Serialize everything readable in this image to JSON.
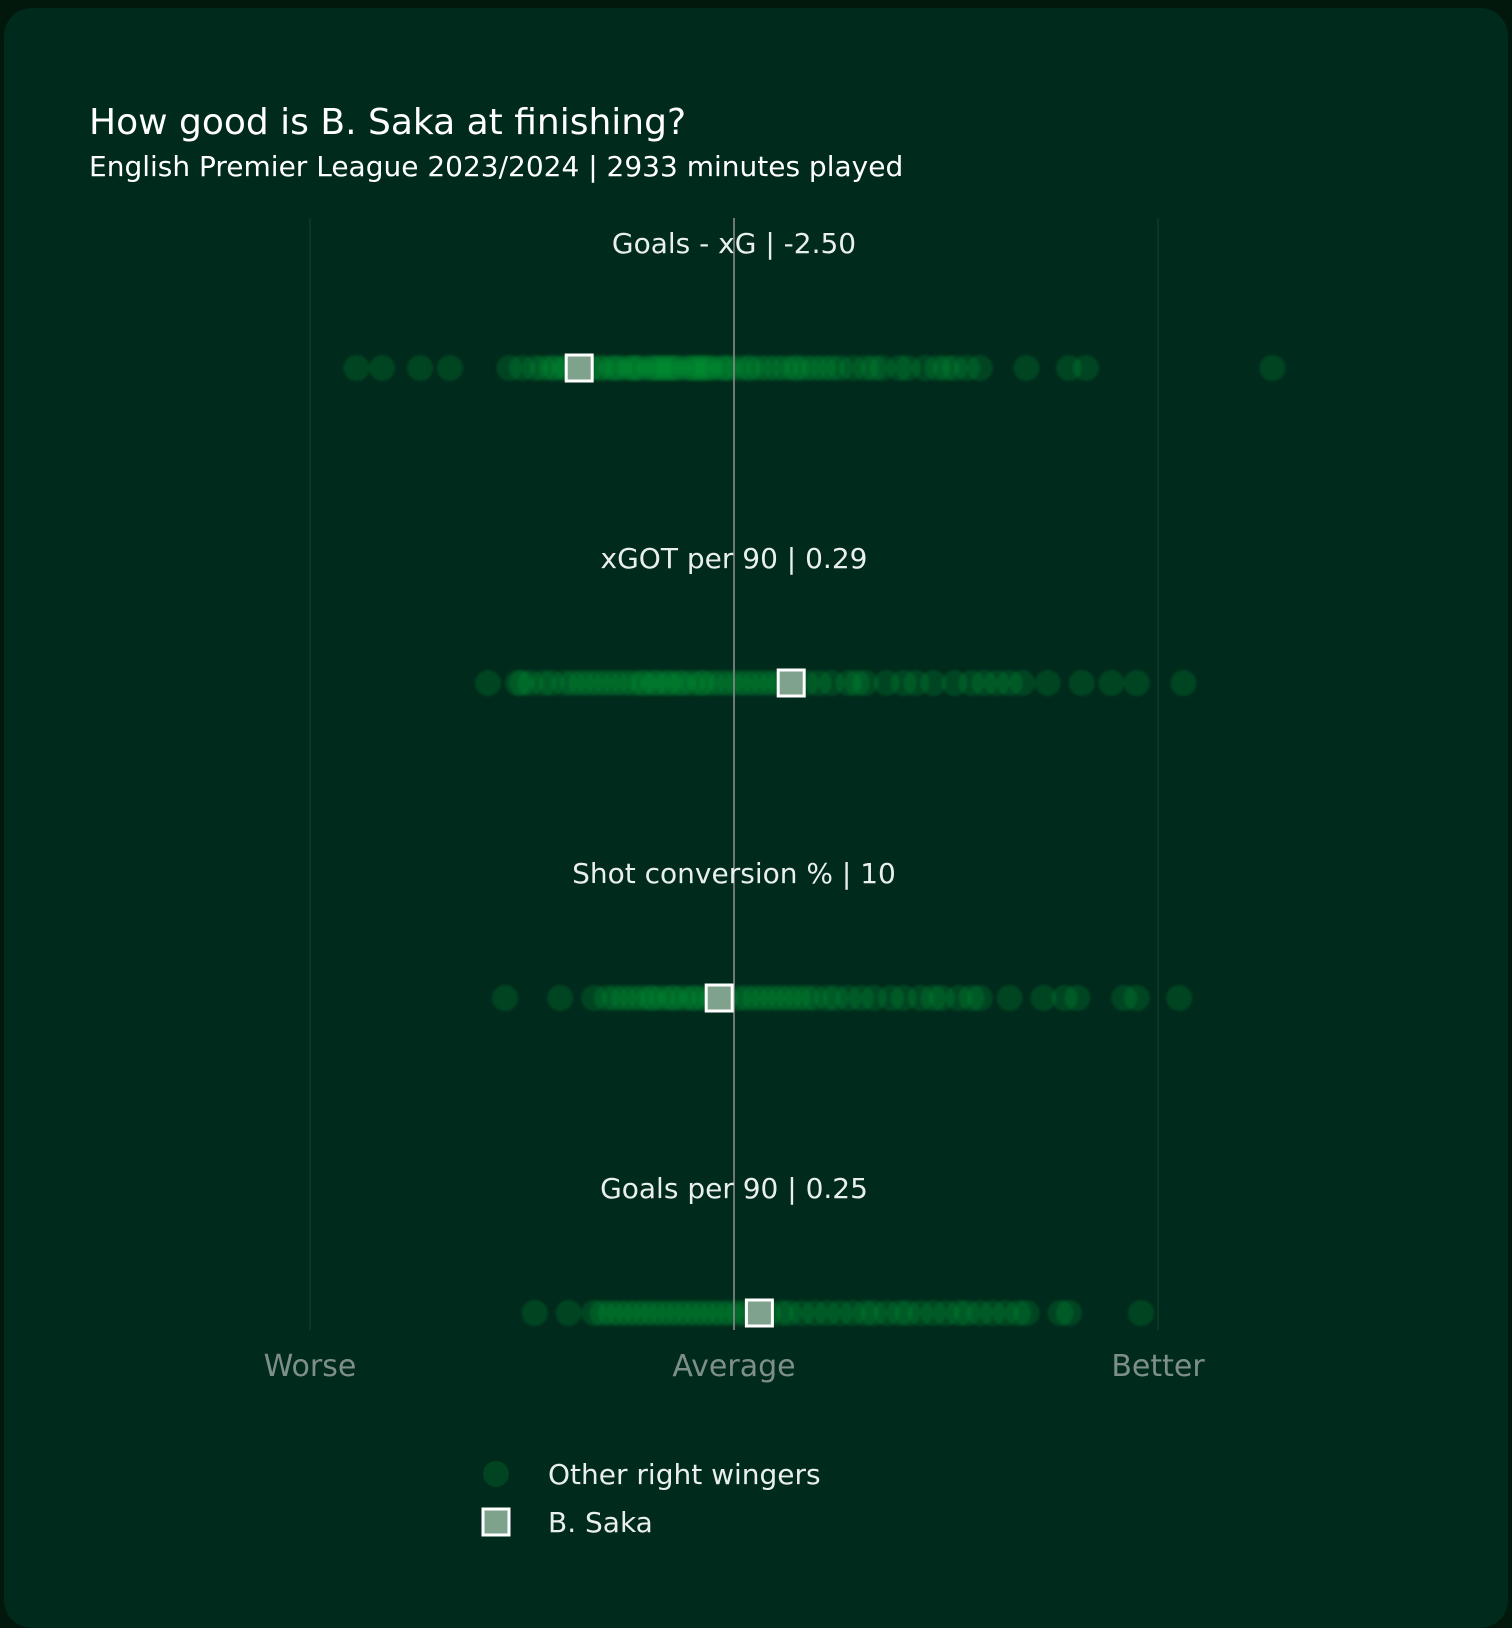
{
  "header": {
    "title": "How good is B. Saka at finishing?",
    "subtitle": "English Premier League 2023/2024 | 2933 minutes played"
  },
  "colors": {
    "background": "#002a1c",
    "others": "#05a43a",
    "saka_fill": "#7fa28d",
    "saka_stroke": "#ffffff",
    "average_line": "#8b8b8b"
  },
  "chart_data": {
    "type": "scatter",
    "scale": "standardized, -1 = Worse, 0 = Average, 1 = Better",
    "xlim": [
      -1,
      1
    ],
    "axis_labels": {
      "worse": "Worse",
      "average": "Average",
      "better": "Better"
    },
    "legend": {
      "others": "Other right wingers",
      "highlight": "B. Saka"
    },
    "metrics": [
      {
        "label": "Goals - xG | -2.50",
        "saka": -0.365,
        "others": [
          -0.89,
          -0.83,
          -0.74,
          -0.67,
          -0.53,
          -0.5,
          -0.47,
          -0.45,
          -0.43,
          -0.42,
          -0.4,
          -0.39,
          -0.37,
          -0.34,
          -0.32,
          -0.31,
          -0.29,
          -0.28,
          -0.27,
          -0.25,
          -0.24,
          -0.23,
          -0.22,
          -0.2,
          -0.19,
          -0.18,
          -0.17,
          -0.16,
          -0.15,
          -0.14,
          -0.13,
          -0.11,
          -0.1,
          -0.09,
          -0.08,
          -0.07,
          -0.06,
          -0.05,
          -0.03,
          -0.02,
          -0.01,
          0.01,
          0.03,
          0.04,
          0.06,
          0.08,
          0.1,
          0.12,
          0.14,
          0.15,
          0.17,
          0.19,
          0.21,
          0.23,
          0.25,
          0.28,
          0.31,
          0.33,
          0.35,
          0.39,
          0.41,
          0.45,
          0.48,
          0.5,
          0.52,
          0.55,
          0.58,
          0.69,
          0.79,
          0.83,
          1.27
        ]
      },
      {
        "label": "xGOT per 90 | 0.29",
        "saka": 0.135,
        "others": [
          -0.58,
          -0.51,
          -0.5,
          -0.48,
          -0.45,
          -0.43,
          -0.4,
          -0.38,
          -0.36,
          -0.34,
          -0.32,
          -0.3,
          -0.28,
          -0.26,
          -0.24,
          -0.22,
          -0.21,
          -0.19,
          -0.18,
          -0.16,
          -0.15,
          -0.13,
          -0.12,
          -0.1,
          -0.08,
          -0.07,
          -0.05,
          -0.03,
          -0.01,
          0.01,
          0.03,
          0.05,
          0.07,
          0.09,
          0.11,
          0.17,
          0.2,
          0.23,
          0.27,
          0.29,
          0.31,
          0.36,
          0.4,
          0.43,
          0.47,
          0.52,
          0.56,
          0.59,
          0.62,
          0.65,
          0.68,
          0.74,
          0.82,
          0.89,
          0.95,
          1.06
        ]
      },
      {
        "label": "Shot conversion % | 10",
        "saka": -0.035,
        "others": [
          -0.54,
          -0.41,
          -0.33,
          -0.3,
          -0.28,
          -0.26,
          -0.24,
          -0.22,
          -0.2,
          -0.19,
          -0.17,
          -0.15,
          -0.14,
          -0.12,
          -0.1,
          -0.09,
          -0.07,
          -0.05,
          -0.04,
          -0.02,
          0.01,
          0.03,
          0.05,
          0.07,
          0.09,
          0.11,
          0.13,
          0.15,
          0.17,
          0.19,
          0.22,
          0.24,
          0.27,
          0.3,
          0.33,
          0.37,
          0.4,
          0.44,
          0.47,
          0.49,
          0.53,
          0.56,
          0.58,
          0.65,
          0.73,
          0.78,
          0.81,
          0.92,
          0.95,
          1.05
        ]
      },
      {
        "label": "Goals per 90 | 0.25",
        "saka": 0.06,
        "others": [
          -0.47,
          -0.39,
          -0.33,
          -0.31,
          -0.29,
          -0.27,
          -0.25,
          -0.23,
          -0.21,
          -0.19,
          -0.17,
          -0.15,
          -0.13,
          -0.11,
          -0.09,
          -0.07,
          -0.05,
          -0.03,
          -0.01,
          0.01,
          0.03,
          0.05,
          0.08,
          0.11,
          0.13,
          0.16,
          0.19,
          0.22,
          0.25,
          0.28,
          0.31,
          0.33,
          0.36,
          0.39,
          0.41,
          0.44,
          0.47,
          0.5,
          0.53,
          0.55,
          0.58,
          0.61,
          0.64,
          0.67,
          0.69,
          0.77,
          0.79,
          0.96
        ]
      }
    ]
  }
}
